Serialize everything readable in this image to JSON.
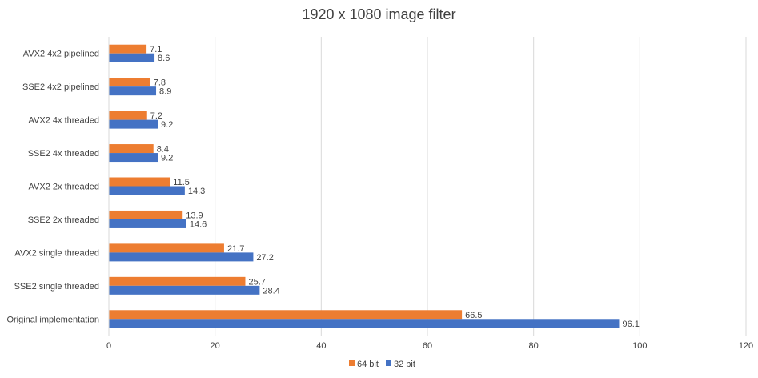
{
  "chart_data": {
    "type": "bar",
    "orientation": "horizontal",
    "title": "1920 x 1080 image filter",
    "xlabel": "",
    "ylabel": "",
    "categories": [
      "AVX2 4x2 pipelined",
      "SSE2 4x2 pipelined",
      "AVX2 4x threaded",
      "SSE2 4x threaded",
      "AVX2 2x threaded",
      "SSE2 2x threaded",
      "AVX2 single threaded",
      "SSE2 single threaded",
      "Original implementation"
    ],
    "series": [
      {
        "name": "64 bit",
        "color": "#ED7D31",
        "values": [
          7.1,
          7.8,
          7.2,
          8.4,
          11.5,
          13.9,
          21.7,
          25.7,
          66.5
        ]
      },
      {
        "name": "32 bit",
        "color": "#4472C4",
        "values": [
          8.6,
          8.9,
          9.2,
          9.2,
          14.3,
          14.6,
          27.2,
          28.4,
          96.1
        ]
      }
    ],
    "xlim": [
      0,
      120
    ],
    "xticks": [
      0,
      20,
      40,
      60,
      80,
      100,
      120
    ],
    "grid": true,
    "legend_position": "bottom"
  }
}
